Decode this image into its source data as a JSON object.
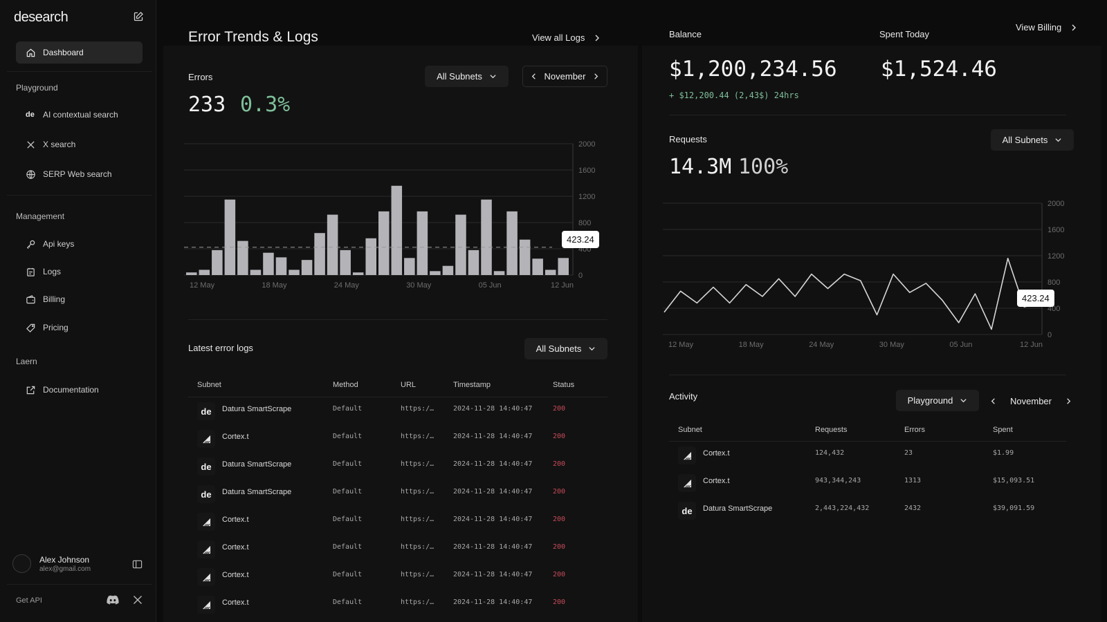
{
  "sidebar": {
    "logo": "desearch",
    "dashboard": "Dashboard",
    "sections": {
      "playground": "Playground",
      "management": "Management",
      "learn": "Laern"
    },
    "playground_items": [
      "AI contextual search",
      "X search",
      "SERP Web search"
    ],
    "management_items": [
      "Api keys",
      "Logs",
      "Billing",
      "Pricing"
    ],
    "learn_items": [
      "Documentation"
    ],
    "user": {
      "name": "Alex Johnson",
      "email": "alex@gmail.com"
    },
    "get_api": "Get API",
    "de_badge": "de"
  },
  "errors_panel": {
    "title": "Error Trends & Logs",
    "view_all": "View all Logs",
    "errors_label": "Errors",
    "errors_count": "233",
    "errors_pct": "0.3%",
    "subnet_filter": "All Subnets",
    "month": "November",
    "tooltip": "423.24"
  },
  "errors_chart": {
    "chart_data": {
      "type": "bar",
      "ylim": [
        0,
        2000
      ],
      "yticks": [
        "2000",
        "1600",
        "1200",
        "800",
        "400",
        "0"
      ],
      "xticks": [
        "12 May",
        "18 May",
        "24 May",
        "30 May",
        "05 Jun",
        "12 Jun"
      ],
      "reference_line": 423.24,
      "values": [
        40,
        80,
        380,
        1150,
        520,
        80,
        340,
        270,
        80,
        230,
        640,
        920,
        380,
        40,
        560,
        970,
        1360,
        260,
        970,
        60,
        140,
        920,
        380,
        1150,
        60,
        970,
        540,
        250,
        80,
        260
      ]
    }
  },
  "logs": {
    "title": "Latest error logs",
    "subnet_filter": "All Subnets",
    "headers": [
      "Subnet",
      "Method",
      "URL",
      "Timestamp",
      "Status"
    ],
    "rows": [
      {
        "logo": "de",
        "subnet": "Datura SmartScrape",
        "method": "Default",
        "url": "https:/…",
        "timestamp": "2024-11-28 14:40:47",
        "status": "200"
      },
      {
        "logo": "cortex",
        "subnet": "Cortex.t",
        "method": "Default",
        "url": "https:/…",
        "timestamp": "2024-11-28 14:40:47",
        "status": "200"
      },
      {
        "logo": "de",
        "subnet": "Datura SmartScrape",
        "method": "Default",
        "url": "https:/…",
        "timestamp": "2024-11-28 14:40:47",
        "status": "200"
      },
      {
        "logo": "de",
        "subnet": "Datura SmartScrape",
        "method": "Default",
        "url": "https:/…",
        "timestamp": "2024-11-28 14:40:47",
        "status": "200"
      },
      {
        "logo": "cortex",
        "subnet": "Cortex.t",
        "method": "Default",
        "url": "https:/…",
        "timestamp": "2024-11-28 14:40:47",
        "status": "200"
      },
      {
        "logo": "cortex",
        "subnet": "Cortex.t",
        "method": "Default",
        "url": "https:/…",
        "timestamp": "2024-11-28 14:40:47",
        "status": "200"
      },
      {
        "logo": "cortex",
        "subnet": "Cortex.t",
        "method": "Default",
        "url": "https:/…",
        "timestamp": "2024-11-28 14:40:47",
        "status": "200"
      },
      {
        "logo": "cortex",
        "subnet": "Cortex.t",
        "method": "Default",
        "url": "https:/…",
        "timestamp": "2024-11-28 14:40:47",
        "status": "200"
      }
    ]
  },
  "balance": {
    "label": "Balance",
    "value": "$1,200,234.56",
    "change": "+ $12,200.44 (2,43$) 24hrs",
    "spent_label": "Spent Today",
    "spent_value": "$1,524.46",
    "view_billing": "View Billing"
  },
  "requests": {
    "label": "Requests",
    "value": "14.3M",
    "pct": "100%",
    "subnet_filter": "All Subnets",
    "tooltip": "423.24"
  },
  "requests_chart": {
    "chart_data": {
      "type": "line",
      "ylim": [
        0,
        2000
      ],
      "yticks": [
        "2000",
        "1600",
        "1200",
        "800",
        "400",
        "0"
      ],
      "xticks": [
        "12 May",
        "18 May",
        "24 May",
        "30 May",
        "05 Jun",
        "12 Jun"
      ],
      "values": [
        340,
        660,
        480,
        720,
        480,
        760,
        580,
        850,
        580,
        920,
        700,
        920,
        820,
        300,
        920,
        640,
        780,
        520,
        180,
        620,
        80,
        1160,
        420,
        480
      ]
    }
  },
  "activity": {
    "title": "Activity",
    "filter": "Playground",
    "month": "November",
    "headers": [
      "Subnet",
      "Requests",
      "Errors",
      "Spent"
    ],
    "rows": [
      {
        "logo": "cortex",
        "subnet": "Cortex.t",
        "requests": "124,432",
        "errors": "23",
        "spent": "$1.99"
      },
      {
        "logo": "cortex",
        "subnet": "Cortex.t",
        "requests": "943,344,243",
        "errors": "1313",
        "spent": "$15,093.51"
      },
      {
        "logo": "de",
        "subnet": "Datura SmartScrape",
        "requests": "2,443,224,432",
        "errors": "2432",
        "spent": "$39,091.59"
      }
    ]
  },
  "colors": {
    "accent_green": "#7fbf9a",
    "status_red": "#c94a58",
    "bar_gray": "#b3b3b8"
  }
}
